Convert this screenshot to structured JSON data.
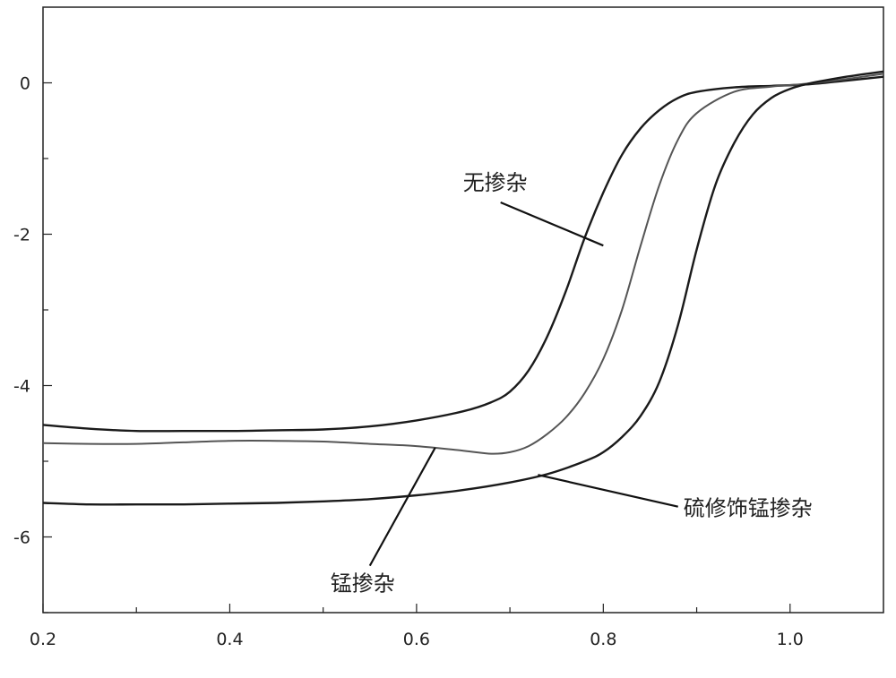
{
  "chart_data": {
    "type": "line",
    "title": "",
    "xlabel": "",
    "ylabel": "",
    "xlim": [
      0.2,
      1.1
    ],
    "ylim": [
      -7,
      1
    ],
    "grid": false,
    "legend": "none",
    "x_ticks": [
      {
        "value": 0.2,
        "label": "0.2"
      },
      {
        "value": 0.4,
        "label": "0.4"
      },
      {
        "value": 0.6,
        "label": "0.6"
      },
      {
        "value": 0.8,
        "label": "0.8"
      },
      {
        "value": 1.0,
        "label": "1.0"
      }
    ],
    "x_minor_ticks": [
      0.3,
      0.5,
      0.7,
      0.9
    ],
    "y_ticks": [
      {
        "value": 0,
        "label": "0"
      },
      {
        "value": -2,
        "label": "-2"
      },
      {
        "value": -4,
        "label": "-4"
      },
      {
        "value": -6,
        "label": "-6"
      }
    ],
    "y_minor_ticks": [
      -1,
      -3,
      -5,
      -7
    ],
    "series": [
      {
        "color": "#1a1a1a",
        "x": [
          0.2,
          0.25,
          0.3,
          0.35,
          0.4,
          0.45,
          0.5,
          0.55,
          0.6,
          0.65,
          0.68,
          0.7,
          0.72,
          0.74,
          0.76,
          0.78,
          0.8,
          0.82,
          0.84,
          0.86,
          0.88,
          0.9,
          0.94,
          0.98,
          1.02,
          1.06,
          1.1
        ],
        "y": [
          -4.52,
          -4.57,
          -4.6,
          -4.6,
          -4.6,
          -4.59,
          -4.58,
          -4.54,
          -4.46,
          -4.34,
          -4.22,
          -4.08,
          -3.8,
          -3.35,
          -2.75,
          -2.05,
          -1.45,
          -0.95,
          -0.6,
          -0.36,
          -0.2,
          -0.12,
          -0.06,
          -0.04,
          -0.02,
          0.03,
          0.08
        ]
      },
      {
        "color": "#555555",
        "x": [
          0.2,
          0.25,
          0.3,
          0.35,
          0.4,
          0.45,
          0.5,
          0.55,
          0.6,
          0.65,
          0.68,
          0.7,
          0.72,
          0.74,
          0.76,
          0.78,
          0.8,
          0.82,
          0.84,
          0.86,
          0.88,
          0.9,
          0.94,
          0.98,
          1.02,
          1.06,
          1.1
        ],
        "y": [
          -4.76,
          -4.77,
          -4.77,
          -4.75,
          -4.73,
          -4.73,
          -4.74,
          -4.77,
          -4.8,
          -4.86,
          -4.9,
          -4.88,
          -4.8,
          -4.64,
          -4.42,
          -4.1,
          -3.65,
          -3.0,
          -2.15,
          -1.35,
          -0.75,
          -0.4,
          -0.12,
          -0.05,
          -0.01,
          0.05,
          0.12
        ]
      },
      {
        "color": "#1a1a1a",
        "x": [
          0.2,
          0.25,
          0.3,
          0.35,
          0.4,
          0.45,
          0.5,
          0.55,
          0.6,
          0.65,
          0.7,
          0.74,
          0.78,
          0.8,
          0.82,
          0.84,
          0.86,
          0.88,
          0.9,
          0.92,
          0.94,
          0.96,
          0.98,
          1.0,
          1.02,
          1.06,
          1.1
        ],
        "y": [
          -5.55,
          -5.57,
          -5.57,
          -5.57,
          -5.56,
          -5.55,
          -5.53,
          -5.5,
          -5.45,
          -5.38,
          -5.28,
          -5.17,
          -5.0,
          -4.88,
          -4.68,
          -4.4,
          -3.95,
          -3.2,
          -2.2,
          -1.35,
          -0.8,
          -0.42,
          -0.2,
          -0.08,
          -0.01,
          0.08,
          0.15
        ]
      }
    ],
    "annotations": [
      {
        "text": "无掺杂",
        "x": 0.8,
        "y": -2.15,
        "label_x": 0.69,
        "label_y": -1.58
      },
      {
        "text": "锰掺杂",
        "x": 0.62,
        "y": -4.82,
        "label_x": 0.55,
        "label_y": -6.38
      },
      {
        "text": "硫修饰锰掺杂",
        "x": 0.73,
        "y": -5.18,
        "label_x": 0.88,
        "label_y": -5.6
      }
    ]
  }
}
